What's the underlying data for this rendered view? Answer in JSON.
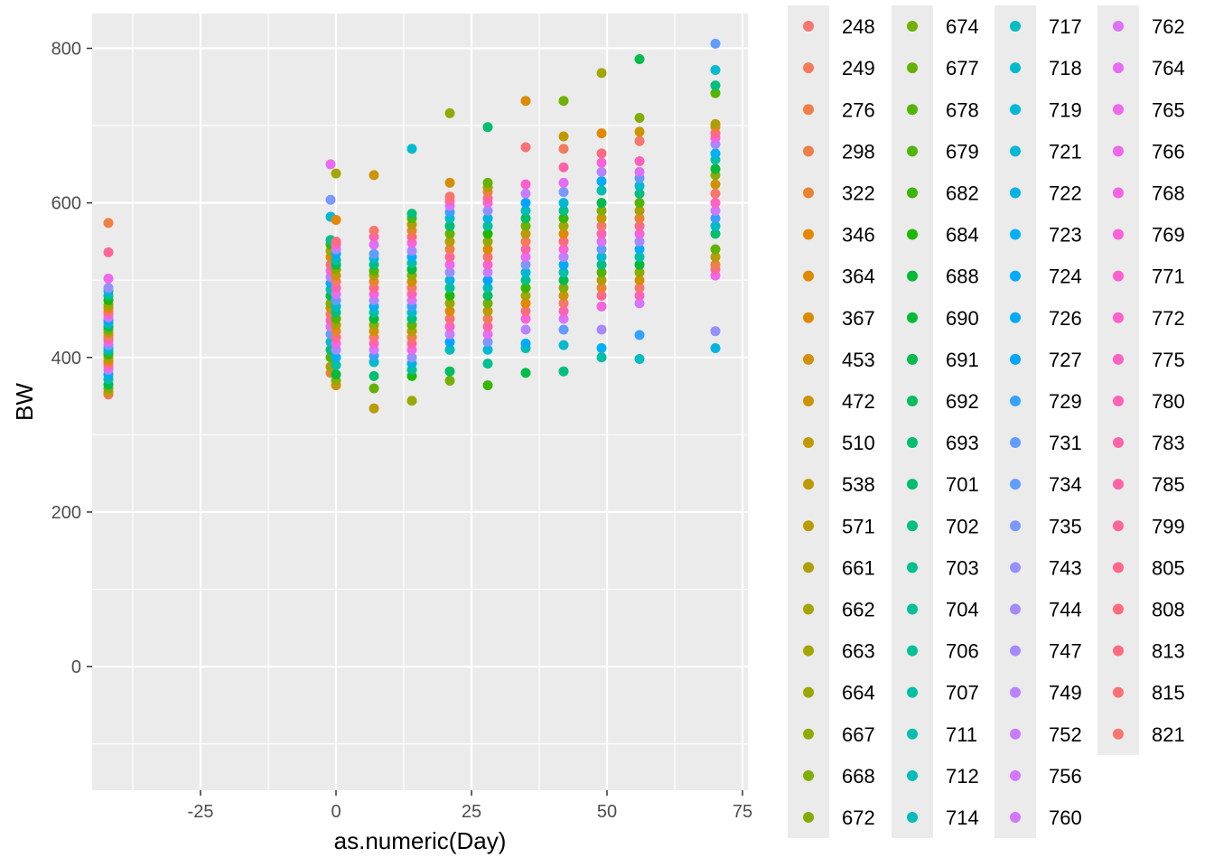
{
  "chart_data": {
    "type": "scatter",
    "title": "",
    "xlabel": "as.numeric(Day)",
    "ylabel": "BW",
    "xlim": [
      -45,
      76
    ],
    "ylim": [
      -160,
      845
    ],
    "x_ticks": [
      -25,
      0,
      25,
      50,
      75
    ],
    "x_tick_labels": [
      "-25",
      "0",
      "25",
      "50",
      "75"
    ],
    "y_ticks": [
      0,
      200,
      400,
      600,
      800
    ],
    "y_tick_labels": [
      "0",
      "200",
      "400",
      "600",
      "800"
    ],
    "grid": true,
    "legend_position": "right",
    "legend_columns": 4,
    "legend_labels": [
      "248",
      "249",
      "276",
      "298",
      "322",
      "346",
      "364",
      "367",
      "453",
      "472",
      "510",
      "538",
      "571",
      "661",
      "662",
      "663",
      "664",
      "667",
      "668",
      "672",
      "674",
      "677",
      "678",
      "679",
      "682",
      "684",
      "688",
      "690",
      "691",
      "692",
      "693",
      "701",
      "702",
      "703",
      "704",
      "706",
      "707",
      "711",
      "712",
      "714",
      "717",
      "718",
      "719",
      "721",
      "722",
      "723",
      "724",
      "726",
      "727",
      "729",
      "731",
      "734",
      "735",
      "743",
      "744",
      "747",
      "749",
      "752",
      "756",
      "760",
      "762",
      "764",
      "765",
      "766",
      "768",
      "769",
      "771",
      "772",
      "775",
      "780",
      "783",
      "785",
      "799",
      "805",
      "808",
      "813",
      "815",
      "821"
    ],
    "series_colors": [
      "#F8766D",
      "#F47A5B",
      "#F07E47",
      "#EA8331",
      "#E58700",
      "#DC8A00",
      "#D48F00",
      "#CB9400",
      "#C09900",
      "#B89C00",
      "#AE9F00",
      "#A3A500",
      "#98A800",
      "#8DAB00",
      "#81AD00",
      "#72B000",
      "#64B200",
      "#53B400",
      "#39B600",
      "#1DB800",
      "#00BA38",
      "#00BC4C",
      "#00BD5E",
      "#00BE6E",
      "#00BF7D",
      "#00C08B",
      "#00C097",
      "#00C0A3",
      "#00BFAE",
      "#00BDB9",
      "#00BCC3",
      "#00BACD",
      "#00B7D6",
      "#00B4DF",
      "#00B0F6",
      "#00ABF9",
      "#00A5FF",
      "#35A2FF",
      "#619CFF",
      "#7B98FF",
      "#9590FF",
      "#A58AFF",
      "#B983FF",
      "#C77CFF",
      "#D277FF",
      "#DE71F6",
      "#E76BF3",
      "#EF67EB",
      "#F563E3",
      "#FA62D9",
      "#FD61CE",
      "#FF61C3",
      "#FF62B6",
      "#FF63A8",
      "#FF659A",
      "#FF678C",
      "#FD6C7E",
      "#FA7074",
      "#F8766D"
    ],
    "x": [
      -42,
      -1,
      0,
      7,
      14,
      21,
      28,
      35,
      42,
      49,
      56,
      70
    ],
    "day_groups": [
      {
        "day": -42,
        "values": [
          352,
          355,
          360,
          365,
          372,
          378,
          384,
          388,
          392,
          396,
          400,
          404,
          408,
          412,
          416,
          420,
          424,
          428,
          432,
          436,
          440,
          444,
          448,
          452,
          456,
          460,
          464,
          468,
          474,
          480,
          486,
          490,
          502,
          536,
          574
        ]
      },
      {
        "day": -1,
        "values": [
          380,
          388,
          400,
          410,
          420,
          430,
          440,
          448,
          456,
          464,
          470,
          480,
          488,
          496,
          504,
          512,
          520,
          530,
          538,
          546,
          552,
          582,
          604,
          650
        ]
      },
      {
        "day": 0,
        "values": [
          364,
          370,
          378,
          390,
          400,
          410,
          418,
          426,
          434,
          442,
          450,
          458,
          466,
          474,
          482,
          490,
          498,
          506,
          514,
          520,
          526,
          534,
          540,
          546,
          550,
          578,
          638
        ]
      },
      {
        "day": 7,
        "values": [
          334,
          360,
          376,
          394,
          402,
          410,
          418,
          426,
          434,
          442,
          450,
          458,
          466,
          474,
          482,
          490,
          498,
          506,
          512,
          520,
          528,
          534,
          546,
          556,
          564,
          636
        ]
      },
      {
        "day": 14,
        "values": [
          344,
          376,
          384,
          392,
          400,
          410,
          418,
          426,
          434,
          442,
          450,
          458,
          466,
          474,
          482,
          490,
          498,
          506,
          514,
          522,
          530,
          538,
          548,
          556,
          564,
          572,
          580,
          586,
          670
        ]
      },
      {
        "day": 21,
        "values": [
          370,
          382,
          410,
          420,
          430,
          440,
          450,
          460,
          470,
          480,
          490,
          500,
          510,
          520,
          530,
          540,
          550,
          560,
          570,
          580,
          588,
          596,
          602,
          608,
          626,
          716
        ]
      },
      {
        "day": 28,
        "values": [
          364,
          392,
          410,
          420,
          430,
          440,
          450,
          460,
          470,
          480,
          490,
          500,
          510,
          520,
          530,
          540,
          550,
          560,
          570,
          580,
          590,
          600,
          606,
          614,
          620,
          626,
          698
        ]
      },
      {
        "day": 35,
        "values": [
          380,
          412,
          418,
          436,
          450,
          460,
          470,
          480,
          490,
          500,
          510,
          520,
          530,
          540,
          550,
          560,
          570,
          580,
          590,
          600,
          612,
          624,
          672,
          732
        ]
      },
      {
        "day": 42,
        "values": [
          382,
          416,
          436,
          450,
          460,
          470,
          480,
          490,
          500,
          510,
          520,
          530,
          540,
          550,
          560,
          570,
          580,
          590,
          600,
          614,
          626,
          646,
          670,
          686,
          732
        ]
      },
      {
        "day": 49,
        "values": [
          400,
          412,
          436,
          466,
          480,
          490,
          500,
          510,
          520,
          530,
          540,
          550,
          560,
          570,
          580,
          590,
          600,
          616,
          628,
          640,
          652,
          664,
          690,
          768
        ]
      },
      {
        "day": 56,
        "values": [
          398,
          429,
          470,
          480,
          490,
          500,
          510,
          520,
          530,
          540,
          550,
          560,
          570,
          580,
          590,
          600,
          612,
          622,
          632,
          640,
          654,
          680,
          692,
          710,
          786
        ]
      },
      {
        "day": 70,
        "values": [
          412,
          434,
          506,
          514,
          520,
          530,
          540,
          560,
          570,
          580,
          590,
          600,
          612,
          624,
          636,
          644,
          656,
          664,
          676,
          684,
          690,
          698,
          702,
          742,
          752,
          772,
          806
        ]
      }
    ]
  }
}
